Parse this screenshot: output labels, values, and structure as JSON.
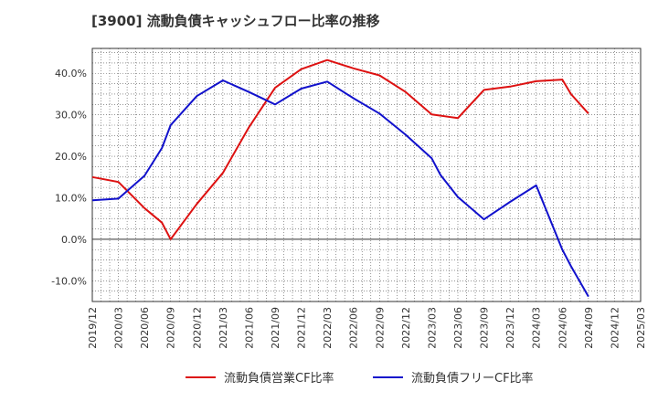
{
  "title": "[3900]  流動負債キャッシュフロー比率の推移",
  "colors": {
    "operating": "#dd1111",
    "free": "#1111cc"
  },
  "chart_data": {
    "type": "line",
    "title": "[3900]  流動負債キャッシュフロー比率の推移",
    "xlabel": "",
    "ylabel": "",
    "ylim": [
      -15,
      46
    ],
    "y_ticks": [
      -10,
      0,
      10,
      20,
      30,
      40
    ],
    "y_tick_labels": [
      "-10.0%",
      "0.0%",
      "10.0%",
      "20.0%",
      "30.0%",
      "40.0%"
    ],
    "x_tick_labels": [
      "2019/12",
      "2020/03",
      "2020/06",
      "2020/09",
      "2020/12",
      "2021/03",
      "2021/06",
      "2021/09",
      "2021/12",
      "2022/03",
      "2022/06",
      "2022/09",
      "2022/12",
      "2023/03",
      "2023/06",
      "2023/09",
      "2023/12",
      "2024/03",
      "2024/06",
      "2024/09",
      "2024/12",
      "2025/03"
    ],
    "grid": true,
    "legend_position": "bottom",
    "series": [
      {
        "name": "流動負債営業CF比率",
        "color": "#dd1111",
        "x": [
          "2019/12",
          "2020/03",
          "2020/06",
          "2020/08",
          "2020/09",
          "2020/12",
          "2021/03",
          "2021/06",
          "2021/09",
          "2021/12",
          "2022/03",
          "2022/06",
          "2022/09",
          "2022/12",
          "2023/03",
          "2023/06",
          "2023/09",
          "2023/12",
          "2024/03",
          "2024/06",
          "2024/07",
          "2024/09"
        ],
        "values": [
          15.0,
          13.8,
          7.5,
          4.0,
          0.0,
          8.5,
          16.0,
          27.0,
          36.5,
          41.0,
          43.2,
          41.2,
          39.5,
          35.5,
          30.1,
          29.2,
          36.0,
          36.8,
          38.1,
          38.5,
          35.0,
          30.3
        ]
      },
      {
        "name": "流動負債フリーCF比率",
        "color": "#1111cc",
        "x": [
          "2019/12",
          "2020/03",
          "2020/06",
          "2020/08",
          "2020/09",
          "2020/12",
          "2021/03",
          "2021/06",
          "2021/09",
          "2021/12",
          "2022/03",
          "2022/06",
          "2022/09",
          "2022/12",
          "2023/03",
          "2023/04",
          "2023/06",
          "2023/09",
          "2023/12",
          "2024/03",
          "2024/06",
          "2024/07",
          "2024/09"
        ],
        "values": [
          9.4,
          9.8,
          15.3,
          22.0,
          27.5,
          34.5,
          38.3,
          35.5,
          32.5,
          36.3,
          38.0,
          34.0,
          30.3,
          25.2,
          19.5,
          15.5,
          10.2,
          4.8,
          9.0,
          13.0,
          -2.5,
          -6.5,
          -13.8
        ]
      }
    ]
  }
}
